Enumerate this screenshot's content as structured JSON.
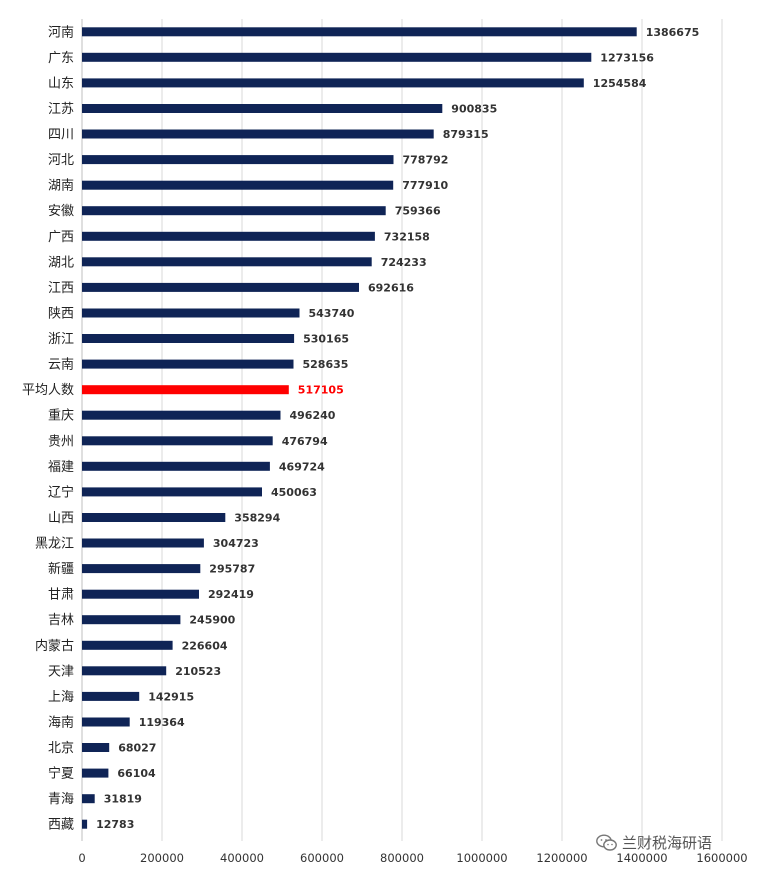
{
  "chart_data": {
    "type": "bar",
    "orientation": "horizontal",
    "categories": [
      "河南",
      "广东",
      "山东",
      "江苏",
      "四川",
      "河北",
      "湖南",
      "安徽",
      "广西",
      "湖北",
      "江西",
      "陕西",
      "浙江",
      "云南",
      "平均人数",
      "重庆",
      "贵州",
      "福建",
      "辽宁",
      "山西",
      "黑龙江",
      "新疆",
      "甘肃",
      "吉林",
      "内蒙古",
      "天津",
      "上海",
      "海南",
      "北京",
      "宁夏",
      "青海",
      "西藏"
    ],
    "values": [
      1386675,
      1273156,
      1254584,
      900835,
      879315,
      778792,
      777910,
      759366,
      732158,
      724233,
      692616,
      543740,
      530165,
      528635,
      517105,
      496240,
      476794,
      469724,
      450063,
      358294,
      304723,
      295787,
      292419,
      245900,
      226604,
      210523,
      142915,
      119364,
      68027,
      66104,
      31819,
      12783
    ],
    "highlight_category": "平均人数",
    "xlim": [
      0,
      1600000
    ],
    "xticks": [
      0,
      200000,
      400000,
      600000,
      800000,
      1000000,
      1200000,
      1400000,
      1600000
    ],
    "grid": true,
    "legend": "none",
    "title": "",
    "xlabel": "",
    "ylabel": "",
    "colors": {
      "bar": "#0f2456",
      "highlight": "#ff0000",
      "highlight_text": "#ff0000",
      "grid": "#d9d9d9"
    }
  },
  "watermark": {
    "text": "兰财税海研语",
    "icon": "wechat-icon"
  }
}
